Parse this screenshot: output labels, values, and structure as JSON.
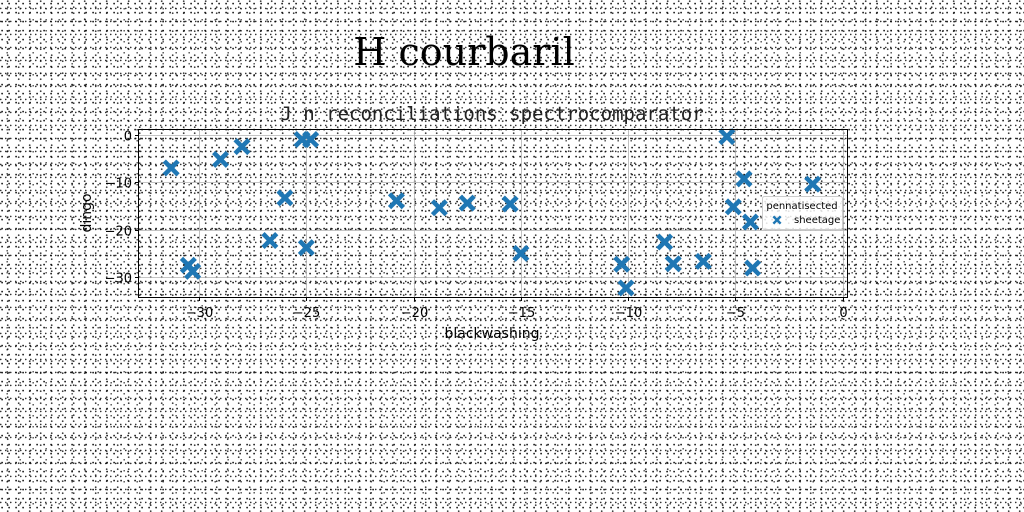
{
  "figure": {
    "suptitle": "H courbaril"
  },
  "chart_data": {
    "type": "scatter",
    "title": "J n reconciliations spectrocomparator",
    "xlabel": "blackwashing",
    "ylabel": "dingo",
    "xlim": [
      -32.8,
      0.2
    ],
    "ylim": [
      -34.2,
      1.0
    ],
    "xticks": [
      -30,
      -25,
      -20,
      -15,
      -10,
      -5,
      0
    ],
    "xtick_labels": [
      "−30",
      "−25",
      "−20",
      "−15",
      "−10",
      "−5",
      "0"
    ],
    "yticks": [
      0,
      -10,
      -20,
      -30
    ],
    "ytick_labels": [
      "0",
      "−10",
      "−20",
      "−30"
    ],
    "grid": true,
    "legend": {
      "title": "pennatisected",
      "placement": "right",
      "entries": [
        "sheetage"
      ]
    },
    "marker": "X",
    "color": "#1f77b4",
    "series": [
      {
        "name": "sheetage",
        "points": [
          [
            -31.3,
            -7.0
          ],
          [
            -30.5,
            -27.5
          ],
          [
            -30.3,
            -28.8
          ],
          [
            -29.0,
            -5.2
          ],
          [
            -28.0,
            -2.5
          ],
          [
            -26.7,
            -22.3
          ],
          [
            -26.0,
            -13.3
          ],
          [
            -25.2,
            -1.0
          ],
          [
            -24.8,
            -1.0
          ],
          [
            -25.0,
            -23.8
          ],
          [
            -20.8,
            -13.9
          ],
          [
            -18.8,
            -15.4
          ],
          [
            -17.5,
            -14.4
          ],
          [
            -15.5,
            -14.6
          ],
          [
            -15.0,
            -25.0
          ],
          [
            -10.3,
            -27.3
          ],
          [
            -10.1,
            -32.3
          ],
          [
            -8.3,
            -22.6
          ],
          [
            -7.9,
            -27.2
          ],
          [
            -6.5,
            -26.7
          ],
          [
            -5.4,
            -0.4
          ],
          [
            -5.1,
            -15.2
          ],
          [
            -4.6,
            -9.3
          ],
          [
            -4.3,
            -18.4
          ],
          [
            -4.2,
            -28.1
          ],
          [
            -1.4,
            -10.4
          ]
        ]
      }
    ]
  }
}
